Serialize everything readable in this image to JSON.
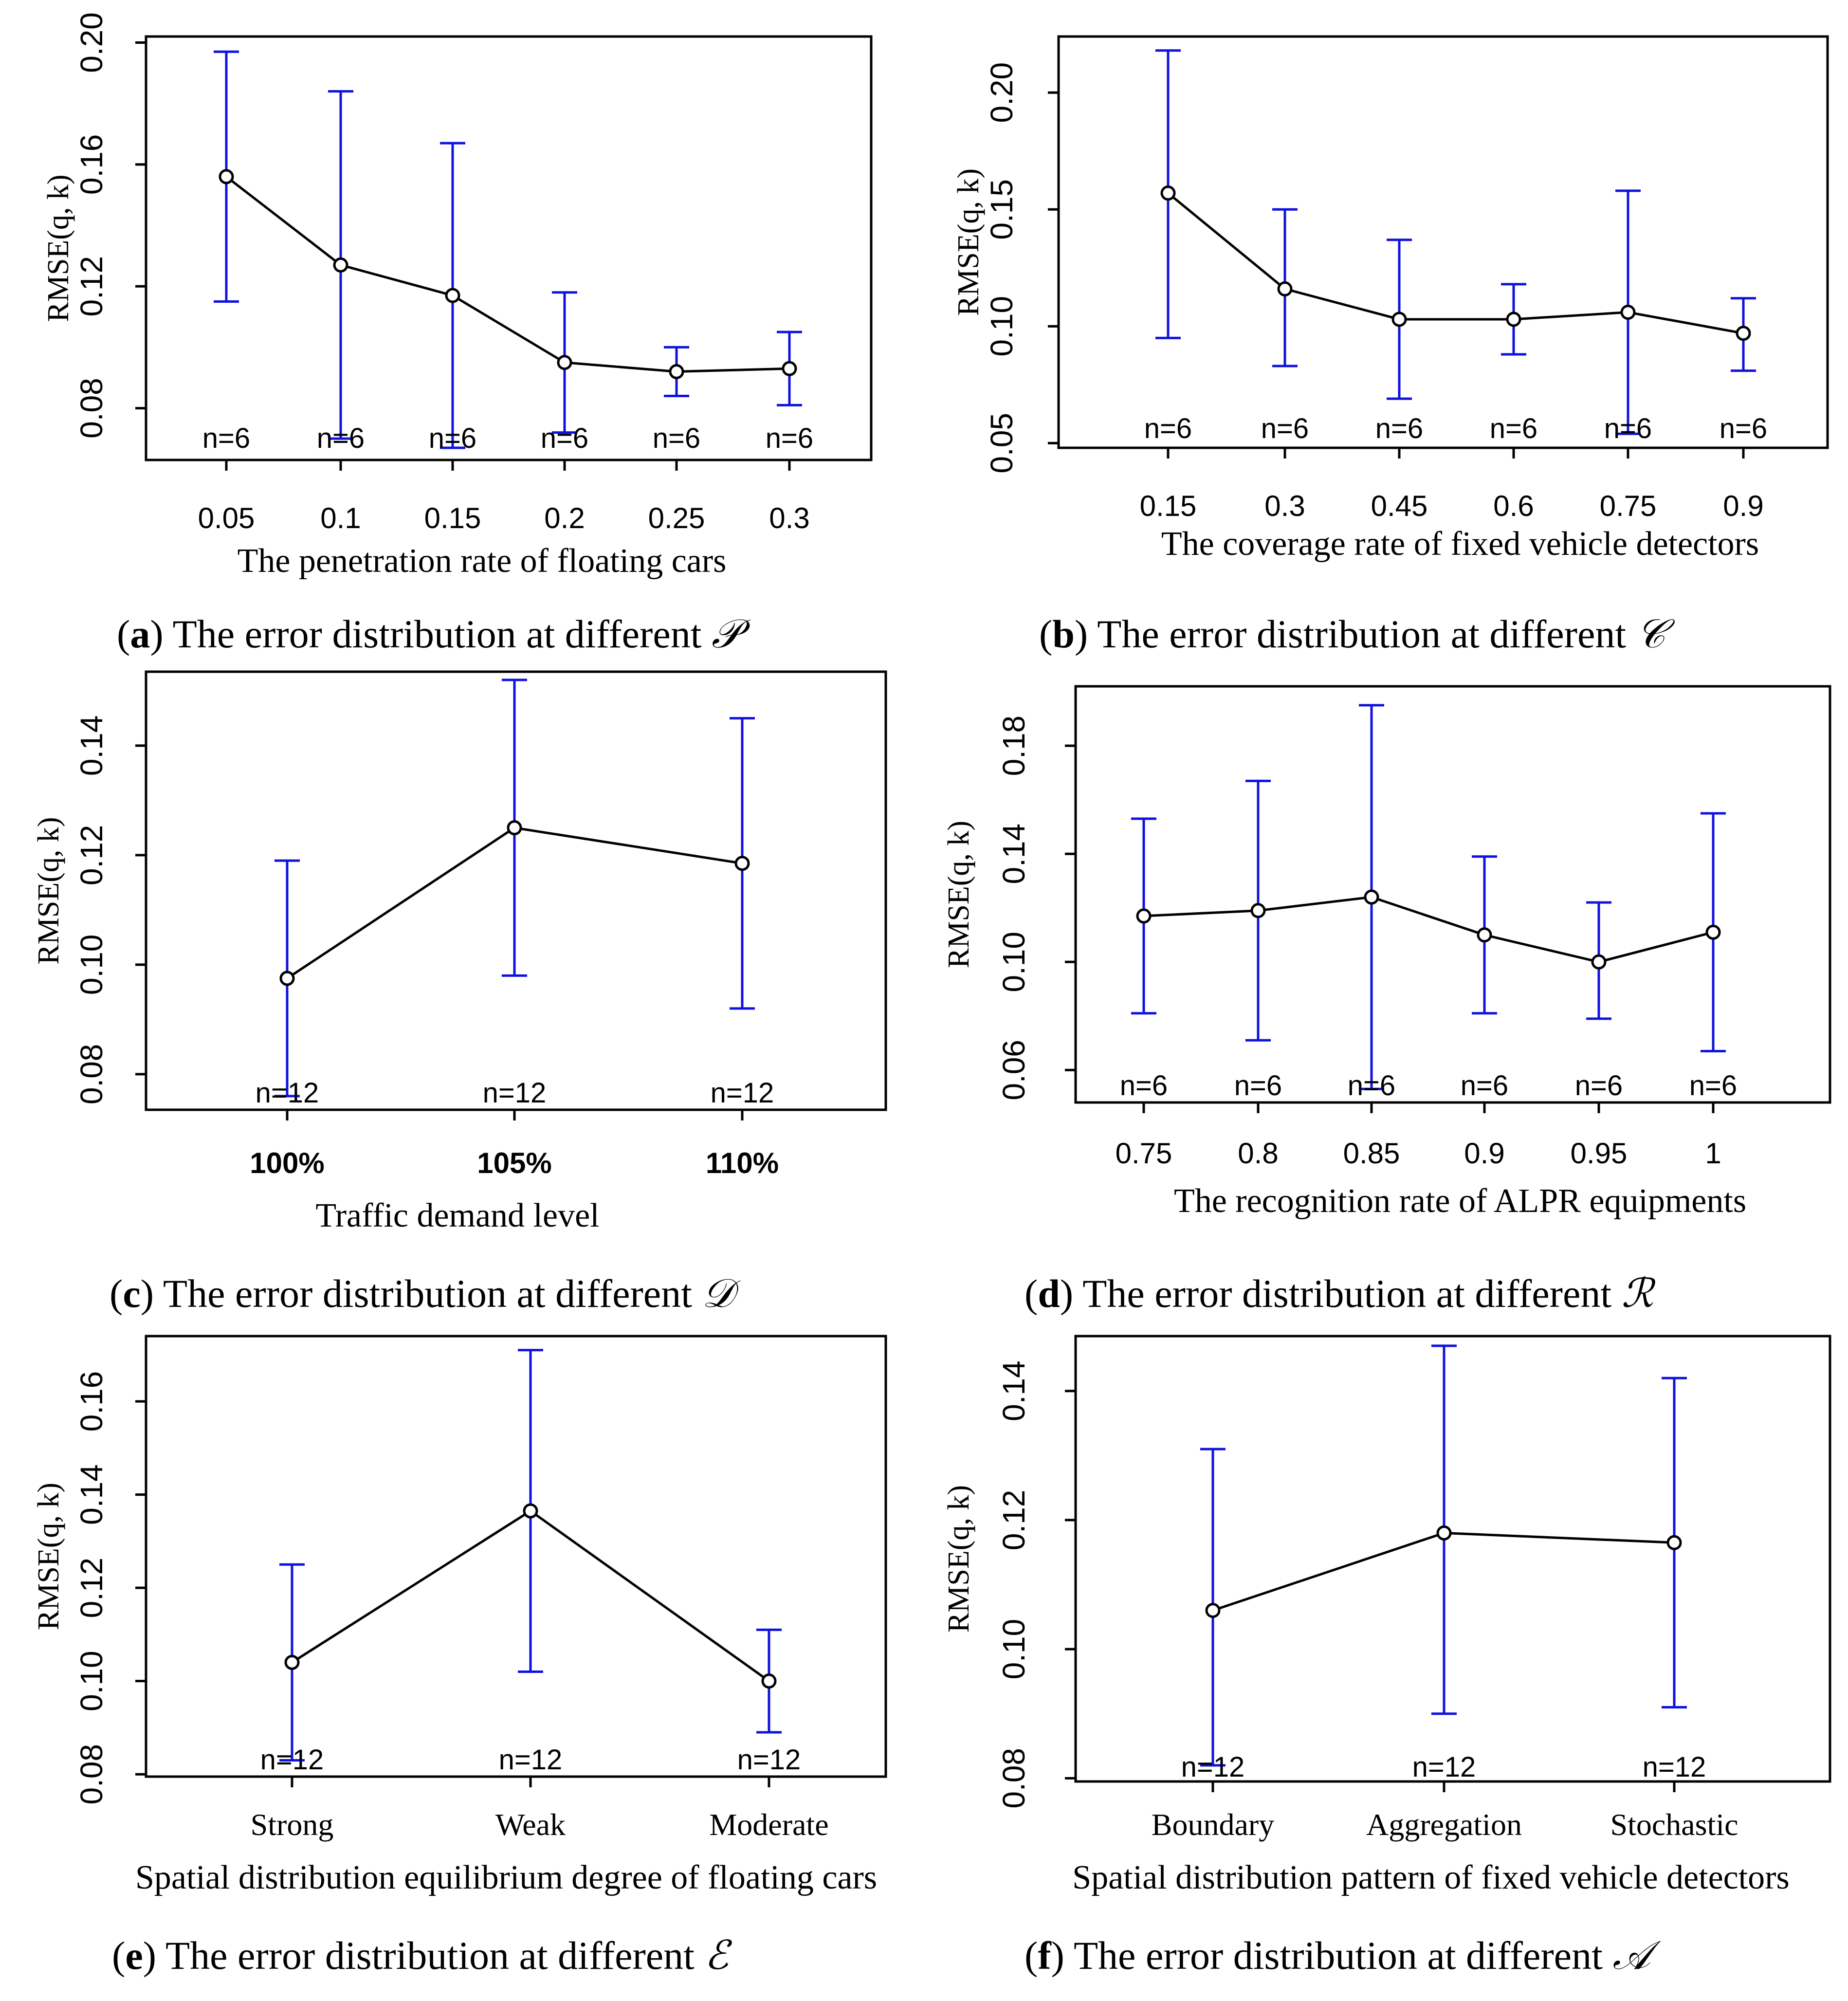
{
  "chart_data": [
    {
      "id": "a",
      "type": "line",
      "subtype": "errorbar",
      "caption_letter": "a",
      "caption_text": "The error distribution at different",
      "caption_symbol": "𝒫",
      "xlabel": "The penetration rate of floating cars",
      "ylabel": "RMSE(q, k)",
      "categories": [
        "0.05",
        "0.1",
        "0.15",
        "0.2",
        "0.25",
        "0.3"
      ],
      "values": [
        0.156,
        0.127,
        0.117,
        0.095,
        0.092,
        0.093
      ],
      "lower": [
        0.115,
        0.07,
        0.067,
        0.072,
        0.084,
        0.081
      ],
      "upper": [
        0.197,
        0.184,
        0.167,
        0.118,
        0.1,
        0.105
      ],
      "n_labels": [
        "n=6",
        "n=6",
        "n=6",
        "n=6",
        "n=6",
        "n=6"
      ],
      "yticks": [
        "0.08",
        "0.12",
        "0.16",
        "0.20"
      ],
      "ytick_values": [
        0.08,
        0.12,
        0.16,
        0.2
      ],
      "ylim": [
        0.063,
        0.202
      ],
      "box": "full",
      "xtick_style": "sans"
    },
    {
      "id": "b",
      "type": "line",
      "subtype": "errorbar",
      "caption_letter": "b",
      "caption_text": "The error distribution at different",
      "caption_symbol": "𝒞",
      "xlabel": "The coverage rate of fixed vehicle detectors",
      "ylabel": "RMSE(q, k)",
      "categories": [
        "0.15",
        "0.3",
        "0.45",
        "0.6",
        "0.75",
        "0.9"
      ],
      "values": [
        0.157,
        0.116,
        0.103,
        0.103,
        0.106,
        0.097
      ],
      "lower": [
        0.095,
        0.083,
        0.069,
        0.088,
        0.054,
        0.081
      ],
      "upper": [
        0.218,
        0.15,
        0.137,
        0.118,
        0.158,
        0.112
      ],
      "n_labels": [
        "n=6",
        "n=6",
        "n=6",
        "n=6",
        "n=6",
        "n=6"
      ],
      "yticks": [
        "0.05",
        "0.10",
        "0.15",
        "0.20"
      ],
      "ytick_values": [
        0.05,
        0.1,
        0.15,
        0.2
      ],
      "ylim": [
        0.048,
        0.224
      ],
      "box": "full",
      "xtick_style": "sans"
    },
    {
      "id": "c",
      "type": "line",
      "subtype": "errorbar",
      "caption_letter": "c",
      "caption_text": "The error distribution at different",
      "caption_symbol": "𝒟",
      "xlabel": "Traffic demand level",
      "ylabel": "RMSE(q, k)",
      "categories": [
        "100%",
        "105%",
        "110%"
      ],
      "values": [
        0.0975,
        0.125,
        0.1185
      ],
      "lower": [
        0.076,
        0.098,
        0.092
      ],
      "upper": [
        0.119,
        0.152,
        0.145
      ],
      "n_labels": [
        "n=12",
        "n=12",
        "n=12"
      ],
      "yticks": [
        "0.08",
        "0.10",
        "0.12",
        "0.14"
      ],
      "ytick_values": [
        0.08,
        0.1,
        0.12,
        0.14
      ],
      "ylim": [
        0.0735,
        0.1535
      ],
      "box": "full",
      "xtick_style": "bold"
    },
    {
      "id": "d",
      "type": "line",
      "subtype": "errorbar",
      "caption_letter": "d",
      "caption_text": "The error distribution at different",
      "caption_symbol": "ℛ",
      "xlabel": "The recognition rate of ALPR equipments",
      "ylabel": "RMSE(q, k)",
      "categories": [
        "0.75",
        "0.8",
        "0.85",
        "0.9",
        "0.95",
        "1"
      ],
      "values": [
        0.117,
        0.119,
        0.124,
        0.11,
        0.1,
        0.111
      ],
      "lower": [
        0.081,
        0.071,
        0.053,
        0.081,
        0.079,
        0.067
      ],
      "upper": [
        0.153,
        0.167,
        0.195,
        0.139,
        0.122,
        0.155
      ],
      "n_labels": [
        "n=6",
        "n=6",
        "n=6",
        "n=6",
        "n=6",
        "n=6"
      ],
      "yticks": [
        "0.06",
        "0.10",
        "0.14",
        "0.18"
      ],
      "ytick_values": [
        0.06,
        0.1,
        0.14,
        0.18
      ],
      "ylim": [
        0.048,
        0.202
      ],
      "box": "full",
      "xtick_style": "sans"
    },
    {
      "id": "e",
      "type": "line",
      "subtype": "errorbar",
      "caption_letter": "e",
      "caption_text": "The error distribution at different",
      "caption_symbol": "ℰ",
      "xlabel": "Spatial distribution equilibrium degree of floating cars",
      "ylabel": "RMSE(q, k)",
      "categories": [
        "Strong",
        "Weak",
        "Moderate"
      ],
      "values": [
        0.104,
        0.1365,
        0.1
      ],
      "lower": [
        0.083,
        0.102,
        0.089
      ],
      "upper": [
        0.125,
        0.171,
        0.111
      ],
      "n_labels": [
        "n=12",
        "n=12",
        "n=12"
      ],
      "yticks": [
        "0.08",
        "0.10",
        "0.12",
        "0.14",
        "0.16"
      ],
      "ytick_values": [
        0.08,
        0.1,
        0.12,
        0.14,
        0.16
      ],
      "ylim": [
        0.0795,
        0.174
      ],
      "box": "full",
      "xtick_style": "serif"
    },
    {
      "id": "f",
      "type": "line",
      "subtype": "errorbar",
      "caption_letter": "f",
      "caption_text": "The error distribution at different",
      "caption_symbol": "𝒜",
      "xlabel": "Spatial distribution pattern of fixed vehicle detectors",
      "ylabel": "RMSE(q, k)",
      "categories": [
        "Boundary",
        "Aggregation",
        "Stochastic"
      ],
      "values": [
        0.106,
        0.118,
        0.1165
      ],
      "lower": [
        0.082,
        0.09,
        0.091
      ],
      "upper": [
        0.131,
        0.147,
        0.142
      ],
      "n_labels": [
        "n=12",
        "n=12",
        "n=12"
      ],
      "yticks": [
        "0.08",
        "0.10",
        "0.12",
        "0.14"
      ],
      "ytick_values": [
        0.08,
        0.1,
        0.12,
        0.14
      ],
      "ylim": [
        0.0795,
        0.1485
      ],
      "box": "full",
      "xtick_style": "serif"
    }
  ]
}
